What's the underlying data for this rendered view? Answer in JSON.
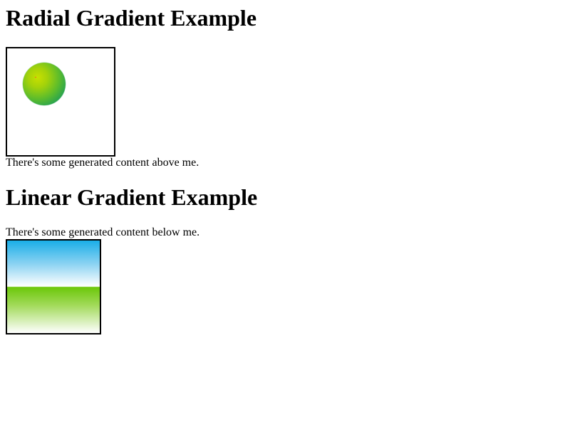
{
  "radial_section": {
    "heading": "Radial Gradient Example",
    "caption": "There's some generated content above me."
  },
  "linear_section": {
    "heading": "Linear Gradient Example",
    "caption": "There's some generated content below me."
  },
  "colors": {
    "radial_center": "#c8e000",
    "radial_edge": "#189b5b",
    "sky_top": "#1aaee8",
    "grass_top": "#6cc70a",
    "border": "#000000"
  }
}
